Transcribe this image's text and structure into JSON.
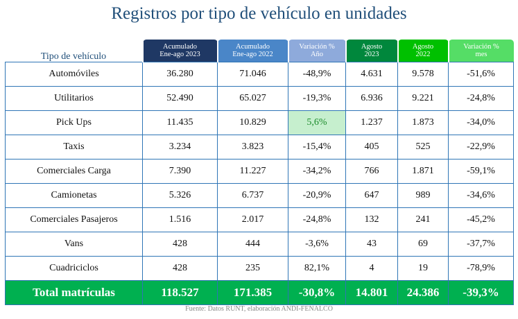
{
  "title": "Registros por tipo de vehículo en unidades",
  "headers": [
    {
      "label": "Tipo de vehículo"
    },
    {
      "line1": "Acumulado",
      "line2": "Ene-ago 2023",
      "color": "#1f3864"
    },
    {
      "line1": "Acumulado",
      "line2": "Ene-ago 2022",
      "color": "#4a86c8"
    },
    {
      "line1": "Variación %",
      "line2": "Año",
      "color": "#8eaadb"
    },
    {
      "line1": "Agosto",
      "line2": "2023",
      "color": "#00873c"
    },
    {
      "line1": "Agosto",
      "line2": "2022",
      "color": "#00c000"
    },
    {
      "line1": "Variación %",
      "line2": "mes",
      "color": "#55dd66"
    }
  ],
  "rows": [
    [
      "Automóviles",
      "36.280",
      "71.046",
      "-48,9%",
      "4.631",
      "9.578",
      "-51,6%"
    ],
    [
      "Utilitarios",
      "52.490",
      "65.027",
      "-19,3%",
      "6.936",
      "9.221",
      "-24,8%"
    ],
    [
      "Pick Ups",
      "11.435",
      "10.829",
      "5,6%",
      "1.237",
      "1.873",
      "-34,0%"
    ],
    [
      "Taxis",
      "3.234",
      "3.823",
      "-15,4%",
      "405",
      "525",
      "-22,9%"
    ],
    [
      "Comerciales Carga",
      "7.390",
      "11.227",
      "-34,2%",
      "766",
      "1.871",
      "-59,1%"
    ],
    [
      "Camionetas",
      "5.326",
      "6.737",
      "-20,9%",
      "647",
      "989",
      "-34,6%"
    ],
    [
      "Comerciales Pasajeros",
      "1.516",
      "2.017",
      "-24,8%",
      "132",
      "241",
      "-45,2%"
    ],
    [
      "Vans",
      "428",
      "444",
      "-3,6%",
      "43",
      "69",
      "-37,7%"
    ],
    [
      "Cuadriciclos",
      "428",
      "235",
      "82,1%",
      "4",
      "19",
      "-78,9%"
    ]
  ],
  "total": [
    "Total matrículas",
    "118.527",
    "171.385",
    "-30,8%",
    "14.801",
    "24.386",
    "-39,3%"
  ],
  "highlight_color": "#c6efce",
  "total_color": "#00b050",
  "source": "Fuente: Datos RUNT, elaboración ANDI-FENALCO"
}
